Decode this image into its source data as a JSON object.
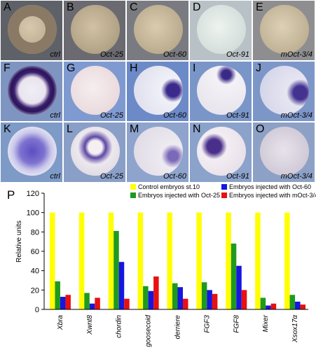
{
  "panels": [
    {
      "letter": "A",
      "label": "ctrl"
    },
    {
      "letter": "B",
      "label": "Oct-25"
    },
    {
      "letter": "C",
      "label": "Oct-60"
    },
    {
      "letter": "D",
      "label": "Oct-91"
    },
    {
      "letter": "E",
      "label": "mOct-3/4"
    },
    {
      "letter": "F",
      "label": "ctrl"
    },
    {
      "letter": "G",
      "label": "Oct-25"
    },
    {
      "letter": "H",
      "label": "Oct-60"
    },
    {
      "letter": "I",
      "label": "Oct-91"
    },
    {
      "letter": "J",
      "label": "mOct-3/4"
    },
    {
      "letter": "K",
      "label": "ctrl"
    },
    {
      "letter": "L",
      "label": "Oct-25"
    },
    {
      "letter": "M",
      "label": "Oct-60"
    },
    {
      "letter": "N",
      "label": "Oct-91"
    },
    {
      "letter": "O",
      "label": "mOct-3/4"
    }
  ],
  "chart_panel_letter": "P",
  "chart_data": {
    "type": "bar",
    "categories": [
      "Xbra",
      "Xwnt8",
      "chordin",
      "goosecoid",
      "derriere",
      "FGF3",
      "FGF8",
      "Mixer",
      "Xsox17α"
    ],
    "series": [
      {
        "name": "Control embryos st.10",
        "color": "#ffff00",
        "values": [
          100,
          100,
          100,
          100,
          100,
          100,
          100,
          100,
          100
        ]
      },
      {
        "name": "Embryos injected with Oct-25",
        "color": "#1f9a1f",
        "values": [
          29,
          17,
          81,
          24,
          27,
          28,
          68,
          12,
          15
        ]
      },
      {
        "name": "Embryos injected with Oct-60",
        "color": "#1616e0",
        "values": [
          13,
          6,
          49,
          19,
          23,
          20,
          45,
          4,
          8
        ]
      },
      {
        "name": "Embryos injected with mOct-3/4",
        "color": "#e81010",
        "values": [
          15,
          12,
          11,
          34,
          11,
          16,
          20,
          6,
          5
        ]
      }
    ],
    "ylabel": "Relative units",
    "ylim": [
      0,
      120
    ],
    "yticks": [
      0,
      20,
      40,
      60,
      80,
      100,
      120
    ],
    "legend_position": "top"
  }
}
